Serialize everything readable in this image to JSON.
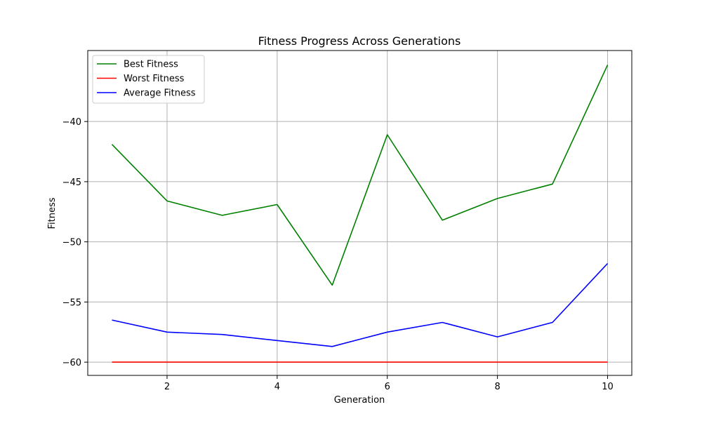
{
  "chart_data": {
    "type": "line",
    "title": "Fitness Progress Across Generations",
    "xlabel": "Generation",
    "ylabel": "Fitness",
    "x": [
      1,
      2,
      3,
      4,
      5,
      6,
      7,
      8,
      9,
      10
    ],
    "xlim": [
      0.56,
      10.44
    ],
    "ylim": [
      -61.1,
      -34.1
    ],
    "xticks": [
      2,
      4,
      6,
      8,
      10
    ],
    "yticks": [
      -60,
      -55,
      -50,
      -45,
      -40
    ],
    "ytick_labels": [
      "−60",
      "−55",
      "−50",
      "−45",
      "−40"
    ],
    "grid": true,
    "legend_position": "top-left",
    "series": [
      {
        "name": "Best Fitness",
        "color": "#008000",
        "values": [
          -41.9,
          -46.6,
          -47.8,
          -46.9,
          -53.6,
          -41.1,
          -48.2,
          -46.4,
          -45.2,
          -35.3
        ]
      },
      {
        "name": "Worst Fitness",
        "color": "#ff0000",
        "values": [
          -60,
          -60,
          -60,
          -60,
          -60,
          -60,
          -60,
          -60,
          -60,
          -60
        ]
      },
      {
        "name": "Average Fitness",
        "color": "#0000ff",
        "values": [
          -56.5,
          -57.5,
          -57.7,
          -58.2,
          -58.7,
          -57.5,
          -56.7,
          -57.9,
          -56.7,
          -51.8
        ]
      }
    ]
  }
}
